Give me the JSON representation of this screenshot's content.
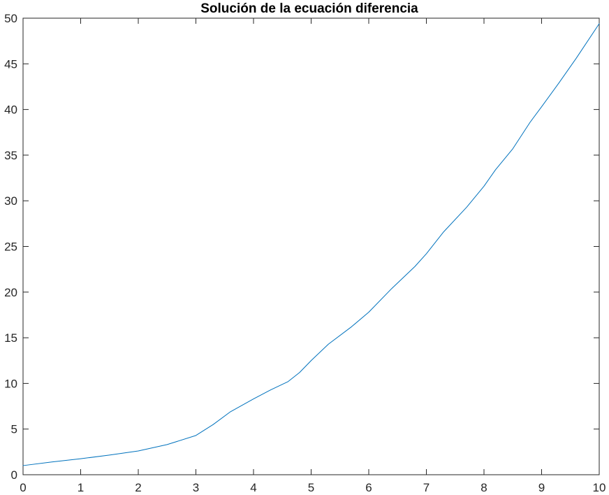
{
  "chart_data": {
    "type": "line",
    "title": "Solución de la ecuación diferencia",
    "xlabel": "",
    "ylabel": "",
    "xlim": [
      0,
      10
    ],
    "ylim": [
      0,
      50
    ],
    "x_ticks": [
      "0",
      "1",
      "2",
      "3",
      "4",
      "5",
      "6",
      "7",
      "8",
      "9",
      "10"
    ],
    "y_ticks": [
      "0",
      "5",
      "10",
      "15",
      "20",
      "25",
      "30",
      "35",
      "40",
      "45",
      "50"
    ],
    "grid": false,
    "series": [
      {
        "color": "#0072bd",
        "x": [
          0,
          0.5,
          1.0,
          1.5,
          2.0,
          2.5,
          3.0,
          3.3,
          3.6,
          4.0,
          4.3,
          4.6,
          4.8,
          5.0,
          5.3,
          5.7,
          6.0,
          6.4,
          6.8,
          7.0,
          7.3,
          7.7,
          8.0,
          8.2,
          8.5,
          8.8,
          9.0,
          9.3,
          9.6,
          10.0
        ],
        "y": [
          1.0,
          1.4,
          1.75,
          2.15,
          2.6,
          3.3,
          4.3,
          5.5,
          6.9,
          8.3,
          9.3,
          10.2,
          11.2,
          12.5,
          14.3,
          16.2,
          17.8,
          20.4,
          22.8,
          24.2,
          26.6,
          29.3,
          31.6,
          33.4,
          35.7,
          38.6,
          40.3,
          42.9,
          45.6,
          49.4
        ]
      }
    ]
  }
}
